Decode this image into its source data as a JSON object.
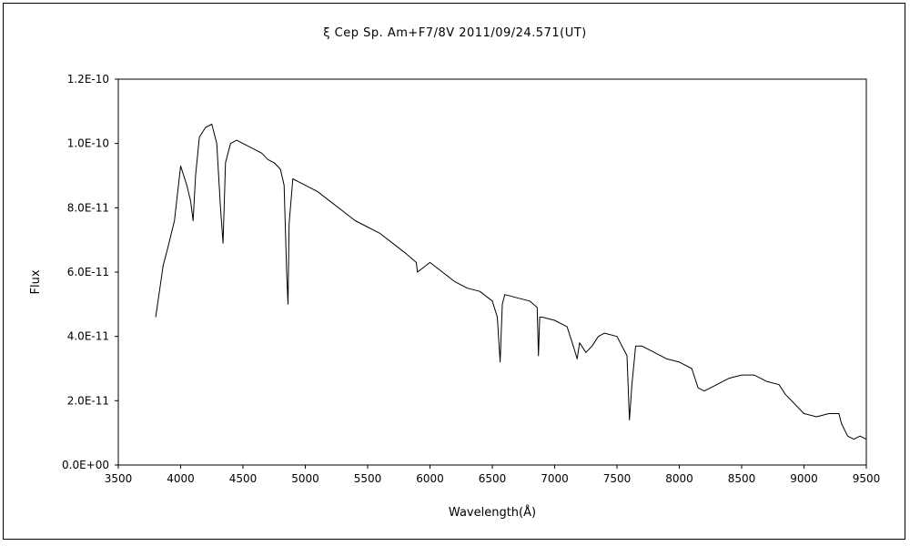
{
  "chart_data": {
    "type": "line",
    "title": "ξ Cep    Sp. Am+F7/8V    2011/09/24.571(UT)",
    "xlabel": "Wavelength(Å)",
    "ylabel": "Flux",
    "xlim": [
      3500,
      9500
    ],
    "ylim": [
      0,
      1.2e-10
    ],
    "xticks": [
      3500,
      4000,
      4500,
      5000,
      5500,
      6000,
      6500,
      7000,
      7500,
      8000,
      8500,
      9000,
      9500
    ],
    "xtick_labels": [
      "3500",
      "4000",
      "4500",
      "5000",
      "5500",
      "6000",
      "6500",
      "7000",
      "7500",
      "8000",
      "8500",
      "9000",
      "9500"
    ],
    "yticks": [
      0,
      2e-11,
      4e-11,
      6e-11,
      8e-11,
      1e-10,
      1.2e-10
    ],
    "ytick_labels": [
      "0.0E+00",
      "2.0E-11",
      "4.0E-11",
      "6.0E-11",
      "8.0E-11",
      "1.0E-10",
      "1.2E-10"
    ],
    "grid": false,
    "legend": "none",
    "series": [
      {
        "color": "#000000",
        "x": [
          3800,
          3830,
          3860,
          3900,
          3950,
          4000,
          4050,
          4080,
          4100,
          4120,
          4150,
          4200,
          4250,
          4290,
          4320,
          4340,
          4360,
          4400,
          4450,
          4500,
          4550,
          4600,
          4650,
          4700,
          4750,
          4800,
          4830,
          4850,
          4861,
          4870,
          4900,
          4950,
          5000,
          5100,
          5200,
          5300,
          5400,
          5500,
          5600,
          5700,
          5800,
          5890,
          5900,
          6000,
          6100,
          6200,
          6300,
          6400,
          6500,
          6540,
          6563,
          6580,
          6600,
          6700,
          6800,
          6860,
          6870,
          6880,
          6900,
          7000,
          7100,
          7150,
          7180,
          7200,
          7250,
          7300,
          7350,
          7400,
          7500,
          7580,
          7600,
          7620,
          7650,
          7700,
          7800,
          7900,
          8000,
          8100,
          8150,
          8200,
          8300,
          8400,
          8500,
          8600,
          8700,
          8800,
          8850,
          8900,
          9000,
          9100,
          9200,
          9280,
          9300,
          9350,
          9400,
          9450,
          9500
        ],
        "values": [
          4.6e-11,
          5.4e-11,
          6.2e-11,
          6.8e-11,
          7.6e-11,
          9.3e-11,
          8.7e-11,
          8.2e-11,
          7.6e-11,
          9e-11,
          1.02e-10,
          1.05e-10,
          1.06e-10,
          1e-10,
          8e-11,
          6.9e-11,
          9.4e-11,
          1e-10,
          1.01e-10,
          1e-10,
          9.9e-11,
          9.8e-11,
          9.7e-11,
          9.5e-11,
          9.4e-11,
          9.2e-11,
          8.7e-11,
          6e-11,
          5e-11,
          7.5e-11,
          8.9e-11,
          8.8e-11,
          8.7e-11,
          8.5e-11,
          8.2e-11,
          7.9e-11,
          7.6e-11,
          7.4e-11,
          7.2e-11,
          6.9e-11,
          6.6e-11,
          6.3e-11,
          6e-11,
          6.3e-11,
          6e-11,
          5.7e-11,
          5.5e-11,
          5.4e-11,
          5.1e-11,
          4.6e-11,
          3.2e-11,
          5e-11,
          5.3e-11,
          5.2e-11,
          5.1e-11,
          4.9e-11,
          3.4e-11,
          4.6e-11,
          4.6e-11,
          4.5e-11,
          4.3e-11,
          3.7e-11,
          3.3e-11,
          3.8e-11,
          3.5e-11,
          3.7e-11,
          4e-11,
          4.1e-11,
          4e-11,
          3.4e-11,
          1.4e-11,
          2.5e-11,
          3.7e-11,
          3.7e-11,
          3.5e-11,
          3.3e-11,
          3.2e-11,
          3e-11,
          2.4e-11,
          2.3e-11,
          2.5e-11,
          2.7e-11,
          2.8e-11,
          2.8e-11,
          2.6e-11,
          2.5e-11,
          2.2e-11,
          2e-11,
          1.6e-11,
          1.5e-11,
          1.6e-11,
          1.6e-11,
          1.3e-11,
          9e-12,
          8e-12,
          9e-12,
          8e-12
        ]
      }
    ]
  }
}
